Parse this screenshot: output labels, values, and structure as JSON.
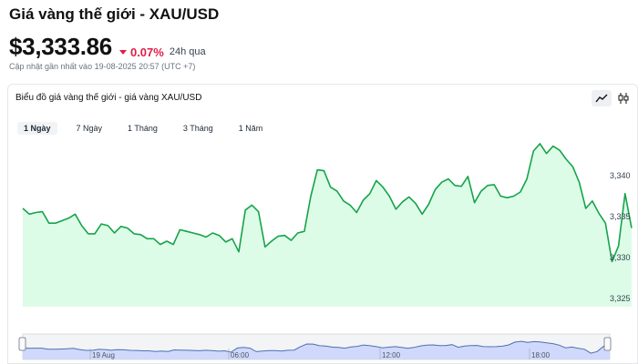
{
  "header": {
    "title": "Giá vàng thế giới - XAU/USD",
    "price": "$3,333.86",
    "change": "0.07%",
    "period": "24h qua",
    "updated": "Cập nhật gần nhất vào 19-08-2025 20:57 (UTC +7)"
  },
  "chart_card": {
    "title": "Biểu đồ giá vàng thế giới - giá vàng XAU/USD",
    "view_buttons": [
      {
        "icon": "line-chart-icon",
        "active": true
      },
      {
        "icon": "candlestick-icon",
        "active": false
      }
    ],
    "ranges": [
      {
        "label": "1 Ngày",
        "active": true
      },
      {
        "label": "7 Ngày",
        "active": false
      },
      {
        "label": "1 Tháng",
        "active": false
      },
      {
        "label": "3 Tháng",
        "active": false
      },
      {
        "label": "1 Năm",
        "active": false
      }
    ]
  },
  "colors": {
    "line": "#16a34a",
    "fill": "#dcfce7",
    "negative": "#e11d48",
    "navigator_fill": "#c7d2fe",
    "navigator_line": "#4f6fb0"
  },
  "chart_data": {
    "type": "area",
    "title": "",
    "xlabel": "",
    "ylabel": "",
    "ylim": [
      3324,
      3344
    ],
    "y_ticks": [
      "3,340",
      "3,335",
      "3,330",
      "3,325"
    ],
    "y_tick_values": [
      3340,
      3335,
      3330,
      3325
    ],
    "grid": false,
    "series": [
      {
        "values": [
          3336.0,
          3335.3,
          3335.5,
          3335.6,
          3334.2,
          3334.2,
          3334.5,
          3334.8,
          3335.3,
          3333.9,
          3332.9,
          3332.9,
          3334.1,
          3333.9,
          3333.0,
          3333.8,
          3333.6,
          3332.9,
          3332.8,
          3332.3,
          3332.3,
          3331.6,
          3332.0,
          3331.6,
          3333.4,
          3333.2,
          3333.0,
          3332.8,
          3332.5,
          3333.0,
          3332.7,
          3331.9,
          3332.3,
          3330.7,
          3335.8,
          3336.4,
          3335.6,
          3331.3,
          3332.0,
          3332.6,
          3332.7,
          3332.1,
          3333.0,
          3333.2,
          3337.5,
          3340.7,
          3340.6,
          3338.6,
          3338.1,
          3336.9,
          3336.4,
          3335.5,
          3337.0,
          3337.8,
          3339.4,
          3338.6,
          3337.5,
          3335.9,
          3336.8,
          3337.4,
          3336.6,
          3335.3,
          3336.5,
          3338.3,
          3339.2,
          3339.6,
          3338.8,
          3338.7,
          3339.9,
          3336.7,
          3338.1,
          3338.8,
          3338.9,
          3337.5,
          3337.3,
          3337.5,
          3338.0,
          3339.6,
          3343.0,
          3343.9,
          3342.7,
          3343.6,
          3343.1,
          3342.0,
          3341.1,
          3339.2,
          3336.0,
          3336.9,
          3335.4,
          3334.2,
          3329.5,
          3331.4,
          3337.8,
          3333.6
        ]
      }
    ],
    "x_labels": [
      "19 Aug",
      "06:00",
      "12:00",
      "18:00"
    ]
  }
}
